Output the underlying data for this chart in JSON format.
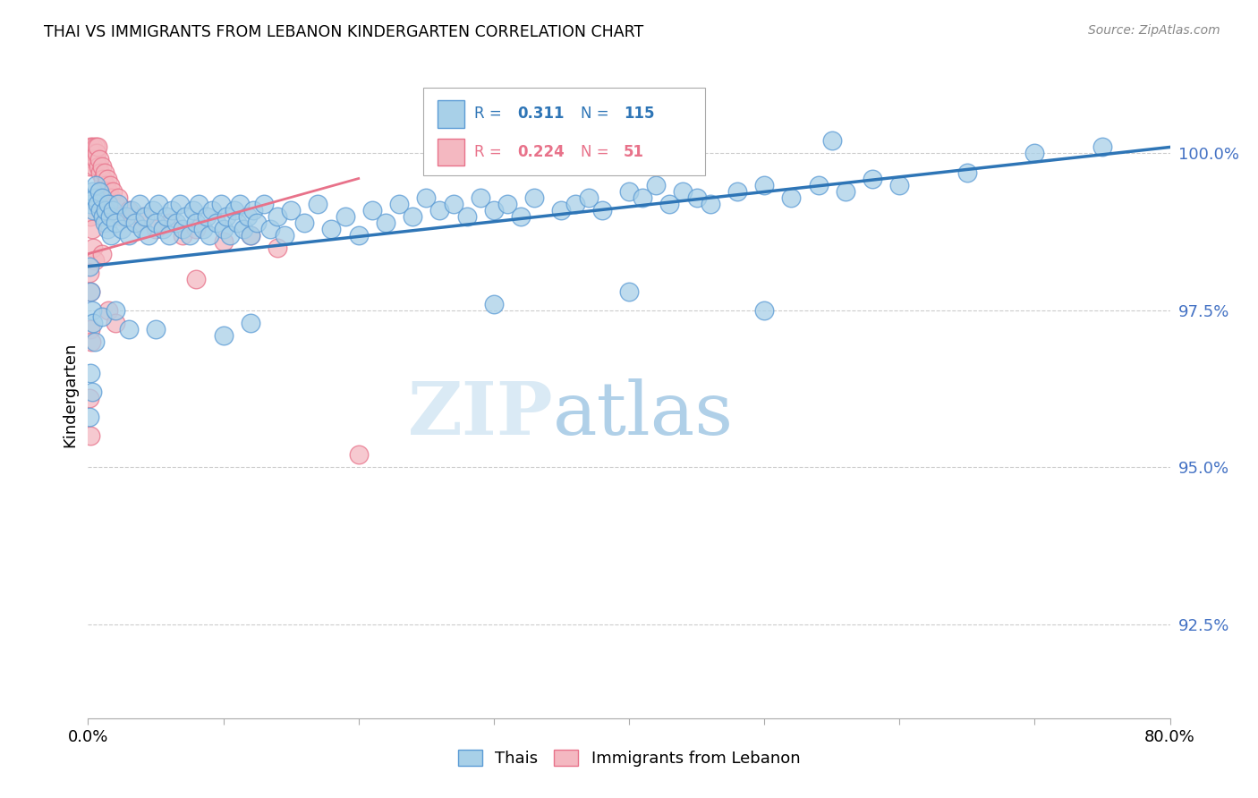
{
  "title": "THAI VS IMMIGRANTS FROM LEBANON KINDERGARTEN CORRELATION CHART",
  "source": "Source: ZipAtlas.com",
  "ylabel": "Kindergarten",
  "xlim": [
    0.0,
    80.0
  ],
  "ylim": [
    91.0,
    101.3
  ],
  "yticks": [
    92.5,
    95.0,
    97.5,
    100.0
  ],
  "ytick_labels": [
    "92.5%",
    "95.0%",
    "97.5%",
    "100.0%"
  ],
  "xticks": [
    0.0,
    10.0,
    20.0,
    30.0,
    40.0,
    50.0,
    60.0,
    70.0,
    80.0
  ],
  "legend_label_blue": "Thais",
  "legend_label_pink": "Immigrants from Lebanon",
  "r_blue": 0.311,
  "n_blue": 115,
  "r_pink": 0.224,
  "n_pink": 51,
  "blue_color": "#a8d0e8",
  "blue_edge_color": "#5b9bd5",
  "blue_line_color": "#2e75b6",
  "pink_color": "#f4b8c1",
  "pink_edge_color": "#e8728a",
  "pink_line_color": "#e8728a",
  "ytick_color": "#4472c4",
  "watermark_color": "#daeaf5",
  "background_color": "#ffffff",
  "scatter_blue": [
    [
      0.2,
      99.2
    ],
    [
      0.3,
      99.4
    ],
    [
      0.4,
      99.1
    ],
    [
      0.5,
      99.3
    ],
    [
      0.6,
      99.5
    ],
    [
      0.7,
      99.2
    ],
    [
      0.8,
      99.4
    ],
    [
      0.9,
      99.1
    ],
    [
      1.0,
      99.3
    ],
    [
      1.1,
      99.0
    ],
    [
      1.2,
      98.9
    ],
    [
      1.3,
      99.1
    ],
    [
      1.4,
      98.8
    ],
    [
      1.5,
      99.2
    ],
    [
      1.6,
      99.0
    ],
    [
      1.7,
      98.7
    ],
    [
      1.8,
      99.1
    ],
    [
      2.0,
      98.9
    ],
    [
      2.2,
      99.2
    ],
    [
      2.5,
      98.8
    ],
    [
      2.8,
      99.0
    ],
    [
      3.0,
      98.7
    ],
    [
      3.2,
      99.1
    ],
    [
      3.5,
      98.9
    ],
    [
      3.8,
      99.2
    ],
    [
      4.0,
      98.8
    ],
    [
      4.2,
      99.0
    ],
    [
      4.5,
      98.7
    ],
    [
      4.8,
      99.1
    ],
    [
      5.0,
      98.9
    ],
    [
      5.2,
      99.2
    ],
    [
      5.5,
      98.8
    ],
    [
      5.8,
      99.0
    ],
    [
      6.0,
      98.7
    ],
    [
      6.2,
      99.1
    ],
    [
      6.5,
      98.9
    ],
    [
      6.8,
      99.2
    ],
    [
      7.0,
      98.8
    ],
    [
      7.2,
      99.0
    ],
    [
      7.5,
      98.7
    ],
    [
      7.8,
      99.1
    ],
    [
      8.0,
      98.9
    ],
    [
      8.2,
      99.2
    ],
    [
      8.5,
      98.8
    ],
    [
      8.8,
      99.0
    ],
    [
      9.0,
      98.7
    ],
    [
      9.2,
      99.1
    ],
    [
      9.5,
      98.9
    ],
    [
      9.8,
      99.2
    ],
    [
      10.0,
      98.8
    ],
    [
      10.2,
      99.0
    ],
    [
      10.5,
      98.7
    ],
    [
      10.8,
      99.1
    ],
    [
      11.0,
      98.9
    ],
    [
      11.2,
      99.2
    ],
    [
      11.5,
      98.8
    ],
    [
      11.8,
      99.0
    ],
    [
      12.0,
      98.7
    ],
    [
      12.2,
      99.1
    ],
    [
      12.5,
      98.9
    ],
    [
      13.0,
      99.2
    ],
    [
      13.5,
      98.8
    ],
    [
      14.0,
      99.0
    ],
    [
      14.5,
      98.7
    ],
    [
      15.0,
      99.1
    ],
    [
      16.0,
      98.9
    ],
    [
      17.0,
      99.2
    ],
    [
      18.0,
      98.8
    ],
    [
      19.0,
      99.0
    ],
    [
      20.0,
      98.7
    ],
    [
      21.0,
      99.1
    ],
    [
      22.0,
      98.9
    ],
    [
      23.0,
      99.2
    ],
    [
      24.0,
      99.0
    ],
    [
      25.0,
      99.3
    ],
    [
      26.0,
      99.1
    ],
    [
      27.0,
      99.2
    ],
    [
      28.0,
      99.0
    ],
    [
      29.0,
      99.3
    ],
    [
      30.0,
      99.1
    ],
    [
      31.0,
      99.2
    ],
    [
      32.0,
      99.0
    ],
    [
      33.0,
      99.3
    ],
    [
      35.0,
      99.1
    ],
    [
      36.0,
      99.2
    ],
    [
      37.0,
      99.3
    ],
    [
      38.0,
      99.1
    ],
    [
      40.0,
      99.4
    ],
    [
      41.0,
      99.3
    ],
    [
      42.0,
      99.5
    ],
    [
      43.0,
      99.2
    ],
    [
      44.0,
      99.4
    ],
    [
      45.0,
      99.3
    ],
    [
      46.0,
      99.2
    ],
    [
      48.0,
      99.4
    ],
    [
      50.0,
      99.5
    ],
    [
      52.0,
      99.3
    ],
    [
      54.0,
      99.5
    ],
    [
      56.0,
      99.4
    ],
    [
      58.0,
      99.6
    ],
    [
      60.0,
      99.5
    ],
    [
      65.0,
      99.7
    ],
    [
      70.0,
      100.0
    ],
    [
      75.0,
      100.1
    ],
    [
      0.1,
      98.2
    ],
    [
      0.2,
      97.8
    ],
    [
      0.3,
      97.5
    ],
    [
      0.4,
      97.3
    ],
    [
      0.5,
      97.0
    ],
    [
      1.0,
      97.4
    ],
    [
      2.0,
      97.5
    ],
    [
      3.0,
      97.2
    ],
    [
      5.0,
      97.2
    ],
    [
      10.0,
      97.1
    ],
    [
      12.0,
      97.3
    ],
    [
      0.2,
      96.5
    ],
    [
      0.3,
      96.2
    ],
    [
      0.1,
      95.8
    ],
    [
      30.0,
      97.6
    ],
    [
      40.0,
      97.8
    ],
    [
      50.0,
      97.5
    ],
    [
      55.0,
      100.2
    ]
  ],
  "scatter_pink": [
    [
      0.1,
      99.8
    ],
    [
      0.2,
      100.1
    ],
    [
      0.3,
      100.0
    ],
    [
      0.35,
      99.9
    ],
    [
      0.4,
      100.1
    ],
    [
      0.45,
      99.8
    ],
    [
      0.5,
      100.0
    ],
    [
      0.55,
      100.1
    ],
    [
      0.6,
      99.9
    ],
    [
      0.65,
      100.0
    ],
    [
      0.7,
      100.1
    ],
    [
      0.75,
      99.8
    ],
    [
      0.8,
      99.9
    ],
    [
      0.9,
      99.7
    ],
    [
      1.0,
      99.8
    ],
    [
      1.1,
      99.6
    ],
    [
      1.2,
      99.7
    ],
    [
      1.3,
      99.5
    ],
    [
      1.4,
      99.6
    ],
    [
      1.5,
      99.4
    ],
    [
      1.6,
      99.5
    ],
    [
      1.7,
      99.3
    ],
    [
      1.8,
      99.4
    ],
    [
      2.0,
      99.2
    ],
    [
      2.2,
      99.3
    ],
    [
      2.5,
      99.0
    ],
    [
      3.0,
      99.1
    ],
    [
      3.5,
      98.9
    ],
    [
      4.0,
      99.0
    ],
    [
      5.0,
      98.8
    ],
    [
      6.0,
      98.9
    ],
    [
      7.0,
      98.7
    ],
    [
      8.0,
      98.8
    ],
    [
      10.0,
      98.6
    ],
    [
      12.0,
      98.7
    ],
    [
      0.2,
      99.0
    ],
    [
      0.3,
      98.8
    ],
    [
      0.4,
      98.5
    ],
    [
      0.5,
      98.3
    ],
    [
      1.0,
      98.4
    ],
    [
      0.1,
      98.1
    ],
    [
      0.2,
      97.8
    ],
    [
      1.5,
      97.5
    ],
    [
      2.0,
      97.3
    ],
    [
      0.15,
      97.2
    ],
    [
      0.25,
      97.0
    ],
    [
      8.0,
      98.0
    ],
    [
      14.0,
      98.5
    ],
    [
      0.1,
      96.1
    ],
    [
      0.2,
      95.5
    ],
    [
      20.0,
      95.2
    ]
  ],
  "blue_trendline_x": [
    0.0,
    80.0
  ],
  "blue_trendline_y": [
    98.2,
    100.1
  ],
  "pink_trendline_x": [
    0.0,
    20.0
  ],
  "pink_trendline_y": [
    98.4,
    99.6
  ]
}
